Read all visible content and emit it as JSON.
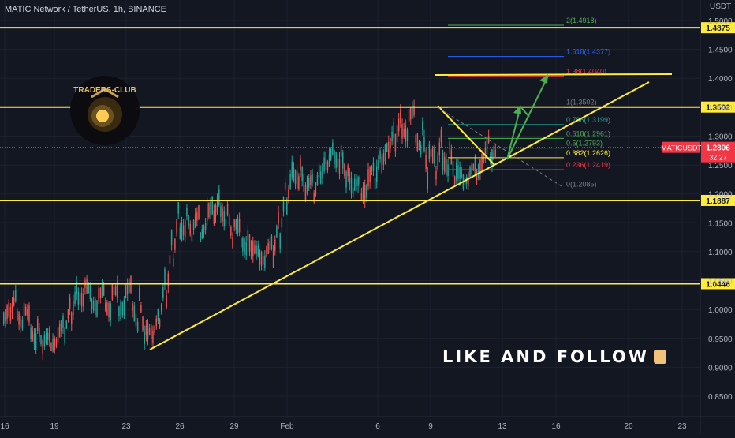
{
  "header": {
    "title": "MATIC Network / TetherUS, 1h, BINANCE",
    "currency": "USDT"
  },
  "logo": {
    "text": "TRADERS-CLUB"
  },
  "banner": {
    "text": "LIKE AND FOLLOW",
    "icon": "thumbs-up-icon"
  },
  "price_tag": {
    "symbol": "MATICUSDT",
    "price": "1.2806",
    "countdown": "32:27"
  },
  "colors": {
    "background": "#131722",
    "up": "#26a69a",
    "down": "#ef5350",
    "level": "#ffeb3b",
    "tag_red": "#f23645",
    "arrow": "#4caf50"
  },
  "chart_data": {
    "type": "candlestick",
    "ylim": [
      0.82,
      1.52
    ],
    "yticks": [
      "1.5000",
      "1.4500",
      "1.4000",
      "1.3500",
      "1.3000",
      "1.2500",
      "1.2000",
      "1.1500",
      "1.1000",
      "1.0500",
      "1.0000",
      "0.9500",
      "0.9000",
      "0.8500"
    ],
    "xticks": [
      "16",
      "19",
      "23",
      "26",
      "29",
      "Feb",
      "6",
      "9",
      "13",
      "16",
      "20",
      "23"
    ],
    "horizontal_levels": [
      {
        "label": "1.4875",
        "value": 1.4875
      },
      {
        "label": "1.3502",
        "value": 1.3502
      },
      {
        "label": "1.1887",
        "value": 1.1887
      },
      {
        "label": "1.0446",
        "value": 1.0446
      }
    ],
    "fibonacci": [
      {
        "label": "2(1.4918)",
        "value": 1.4918,
        "color": "#4caf50"
      },
      {
        "label": "1.618(1.4377)",
        "value": 1.4377,
        "color": "#2962ff"
      },
      {
        "label": "1.38(1.4040)",
        "value": 1.404,
        "color": "#f23645"
      },
      {
        "label": "1(1.3502)",
        "value": 1.3502,
        "color": "#787b86"
      },
      {
        "label": "0.786(1.3199)",
        "value": 1.3199,
        "color": "#26a69a"
      },
      {
        "label": "0.618(1.2961)",
        "value": 1.2961,
        "color": "#4caf50"
      },
      {
        "label": "0.5(1.2793)",
        "value": 1.2793,
        "color": "#4caf50"
      },
      {
        "label": "0.382(1.2626)",
        "value": 1.2626,
        "color": "#ffeb3b"
      },
      {
        "label": "0.236(1.2419)",
        "value": 1.2419,
        "color": "#f23645"
      },
      {
        "label": "0(1.2085)",
        "value": 1.2085,
        "color": "#787b86"
      }
    ],
    "ohlc_anchors": [
      [
        0.985,
        1.045
      ],
      [
        0.992,
        1.005
      ],
      [
        0.99,
        1.035
      ],
      [
        1.0,
        0.97
      ],
      [
        0.96,
        0.99
      ],
      [
        0.975,
        0.94
      ],
      [
        0.945,
        0.925
      ],
      [
        0.935,
        0.96
      ],
      [
        0.955,
        0.945
      ],
      [
        0.95,
        0.985
      ],
      [
        0.98,
        1.025
      ],
      [
        1.02,
        1.05
      ],
      [
        1.045,
        1.015
      ],
      [
        1.01,
        1.03
      ],
      [
        1.025,
        1.0
      ],
      [
        1.005,
        1.035
      ],
      [
        1.03,
        0.995
      ],
      [
        0.995,
        1.035
      ],
      [
        1.03,
        1.005
      ],
      [
        1.01,
        1.045
      ],
      [
        1.04,
        0.965
      ],
      [
        0.965,
        0.94
      ],
      [
        0.945,
        0.96
      ],
      [
        0.96,
        0.995
      ],
      [
        0.99,
        1.065
      ],
      [
        1.06,
        1.135
      ],
      [
        1.13,
        1.185
      ],
      [
        1.18,
        1.14
      ],
      [
        1.14,
        1.12
      ],
      [
        1.12,
        1.17
      ],
      [
        1.165,
        1.145
      ],
      [
        1.15,
        1.18
      ],
      [
        1.175,
        1.195
      ],
      [
        1.19,
        1.15
      ],
      [
        1.15,
        1.115
      ],
      [
        1.12,
        1.145
      ],
      [
        1.14,
        1.105
      ],
      [
        1.105,
        1.09
      ],
      [
        1.09,
        1.1
      ],
      [
        1.1,
        1.08
      ],
      [
        1.085,
        1.12
      ],
      [
        1.115,
        1.18
      ],
      [
        1.175,
        1.24
      ],
      [
        1.235,
        1.26
      ],
      [
        1.255,
        1.215
      ],
      [
        1.215,
        1.19
      ],
      [
        1.19,
        1.23
      ],
      [
        1.225,
        1.25
      ],
      [
        1.245,
        1.27
      ],
      [
        1.265,
        1.285
      ],
      [
        1.28,
        1.245
      ],
      [
        1.245,
        1.215
      ],
      [
        1.215,
        1.195
      ],
      [
        1.195,
        1.225
      ],
      [
        1.225,
        1.205
      ],
      [
        1.21,
        1.25
      ],
      [
        1.245,
        1.275
      ],
      [
        1.27,
        1.285
      ],
      [
        1.28,
        1.315
      ],
      [
        1.31,
        1.34
      ],
      [
        1.335,
        1.3
      ],
      [
        1.3,
        1.345
      ],
      [
        1.34,
        1.275
      ],
      [
        1.275,
        1.215
      ],
      [
        1.215,
        1.265
      ],
      [
        1.26,
        1.305
      ],
      [
        1.3,
        1.24
      ],
      [
        1.24,
        1.22
      ],
      [
        1.22,
        1.235
      ],
      [
        1.235,
        1.225
      ],
      [
        1.225,
        1.25
      ],
      [
        1.25,
        1.255
      ],
      [
        1.255,
        1.295
      ],
      [
        1.29,
        1.27
      ]
    ]
  }
}
